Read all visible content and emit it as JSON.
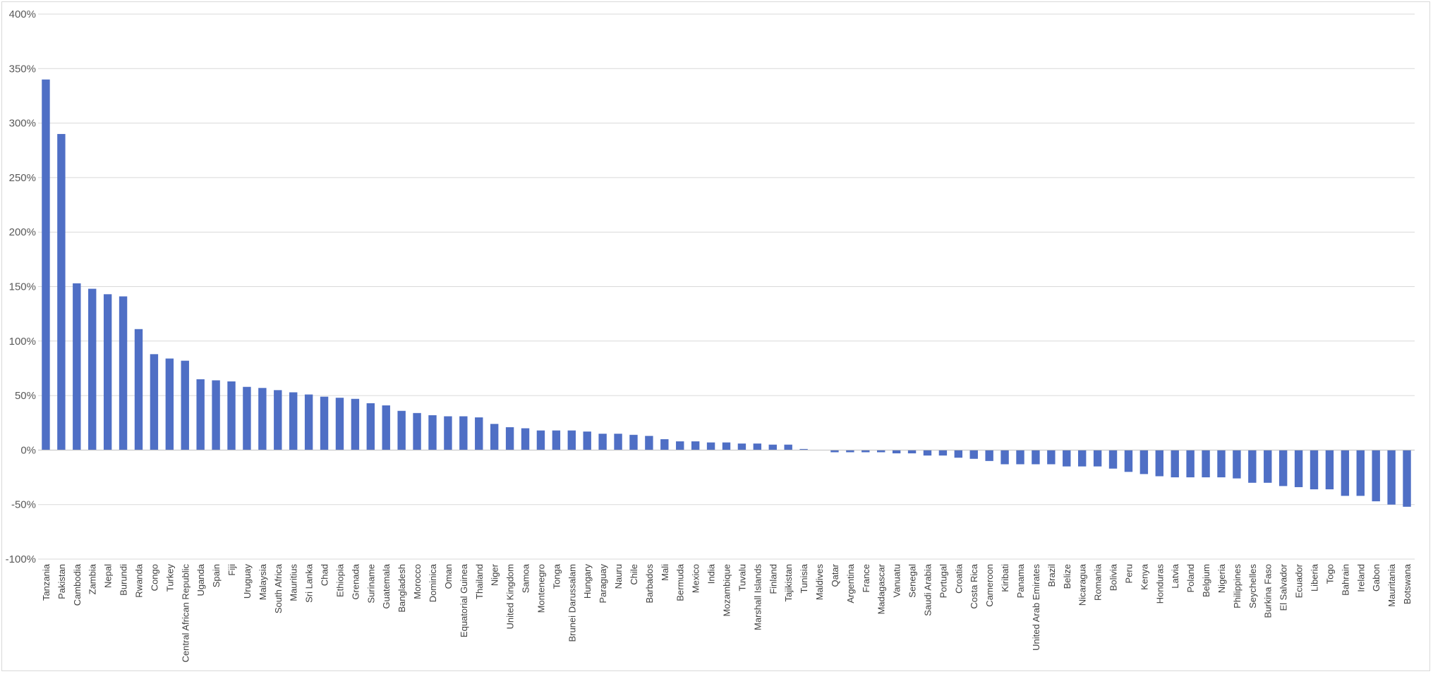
{
  "chart_data": {
    "type": "bar",
    "title": "",
    "xlabel": "",
    "ylabel": "",
    "ylim": [
      -100,
      400
    ],
    "ytick_step": 50,
    "yticks": [
      "-100%",
      "-50%",
      "0%",
      "50%",
      "100%",
      "150%",
      "200%",
      "250%",
      "300%",
      "350%",
      "400%"
    ],
    "unit": "%",
    "grid": true,
    "legend": "none",
    "bar_color": "#4f6fc5",
    "grid_color": "#d9d9d9",
    "categories": [
      "Tanzania",
      "Pakistan",
      "Cambodia",
      "Zambia",
      "Nepal",
      "Burundi",
      "Rwanda",
      "Congo",
      "Turkey",
      "Central African Republic",
      "Uganda",
      "Spain",
      "Fiji",
      "Uruguay",
      "Malaysia",
      "South Africa",
      "Mauritius",
      "Sri Lanka",
      "Chad",
      "Ethiopia",
      "Grenada",
      "Suriname",
      "Guatemala",
      "Bangladesh",
      "Morocco",
      "Dominica",
      "Oman",
      "Equatorial Guinea",
      "Thailand",
      "Niger",
      "United Kingdom",
      "Samoa",
      "Montenegro",
      "Tonga",
      "Brunei Darussalam",
      "Hungary",
      "Paraguay",
      "Nauru",
      "Chile",
      "Barbados",
      "Mali",
      "Bermuda",
      "Mexico",
      "India",
      "Mozambique",
      "Tuvalu",
      "Marshall Islands",
      "Finland",
      "Tajikistan",
      "Tunisia",
      "Maldives",
      "Qatar",
      "Argentina",
      "France",
      "Madagascar",
      "Vanuatu",
      "Senegal",
      "Saudi Arabia",
      "Portugal",
      "Croatia",
      "Costa Rica",
      "Cameroon",
      "Kiribati",
      "Panama",
      "United Arab Emirates",
      "Brazil",
      "Belize",
      "Nicaragua",
      "Romania",
      "Bolivia",
      "Peru",
      "Kenya",
      "Honduras",
      "Latvia",
      "Poland",
      "Belgium",
      "Nigeria",
      "Philippines",
      "Seychelles",
      "Burkina Faso",
      "El Salvador",
      "Ecuador",
      "Liberia",
      "Togo",
      "Bahrain",
      "Ireland",
      "Gabon",
      "Mauritania",
      "Botswana"
    ],
    "values": [
      340,
      290,
      153,
      148,
      143,
      141,
      111,
      88,
      84,
      82,
      65,
      64,
      63,
      58,
      57,
      55,
      53,
      51,
      49,
      48,
      47,
      43,
      41,
      36,
      34,
      32,
      31,
      31,
      30,
      24,
      21,
      20,
      18,
      18,
      18,
      17,
      15,
      15,
      14,
      13,
      10,
      8,
      8,
      7,
      7,
      6,
      6,
      5,
      5,
      1,
      0,
      -2,
      -2,
      -2,
      -2,
      -3,
      -3,
      -5,
      -5,
      -7,
      -8,
      -10,
      -13,
      -13,
      -13,
      -13,
      -15,
      -15,
      -15,
      -17,
      -20,
      -22,
      -24,
      -25,
      -25,
      -25,
      -25,
      -26,
      -30,
      -30,
      -33,
      -34,
      -36,
      -36,
      -42,
      -42,
      -47,
      -50,
      -52
    ]
  }
}
